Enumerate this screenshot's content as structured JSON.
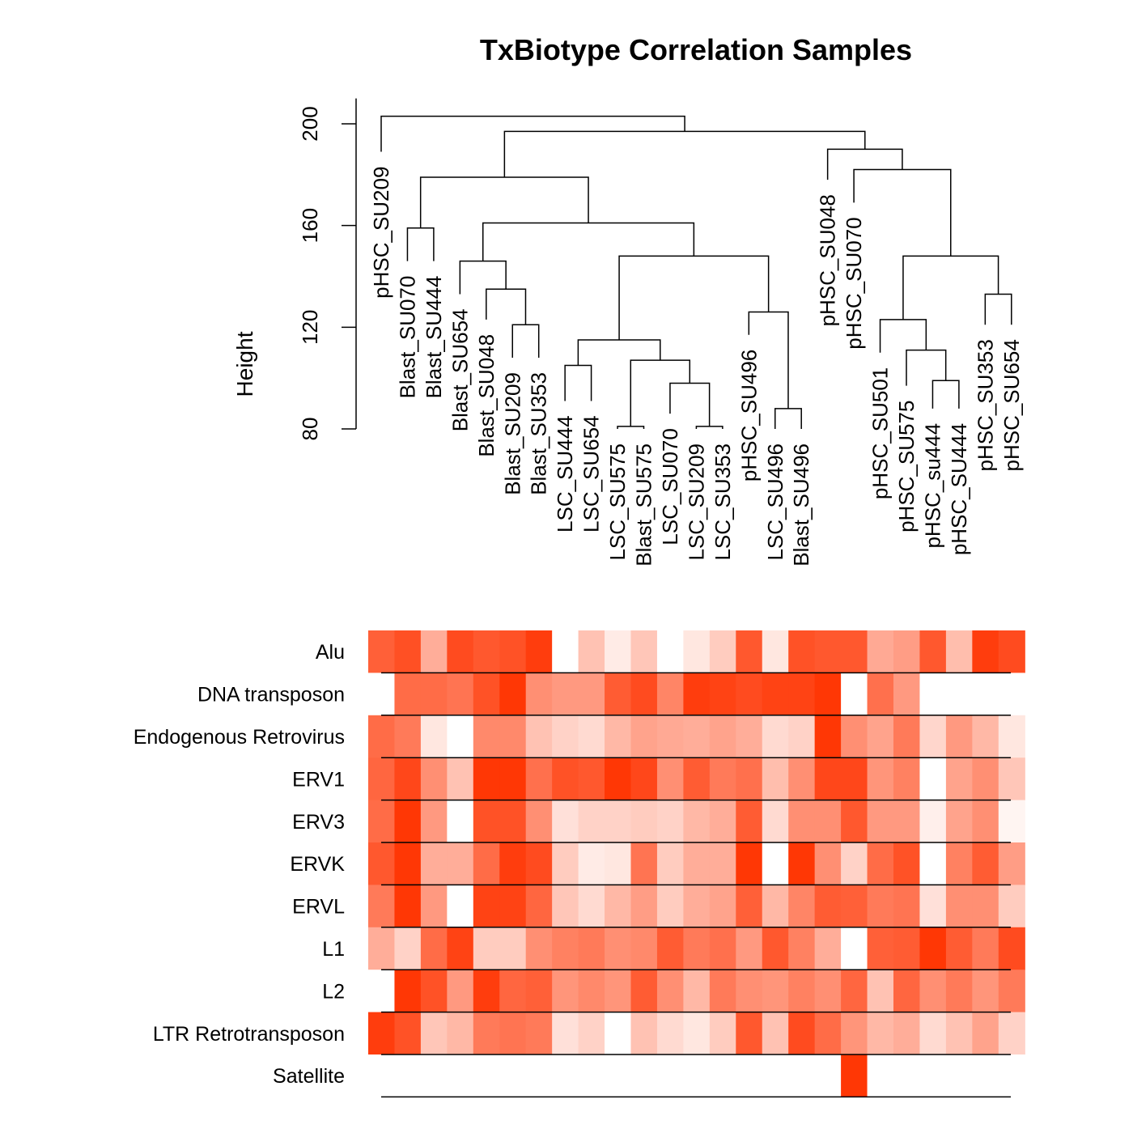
{
  "chart_data": {
    "type": "heatmap",
    "title": "TxBiotype Correlation Samples",
    "ylabel": "Height",
    "dendrogram": {
      "y_ticks": [
        80,
        120,
        160,
        200
      ],
      "ylim": [
        80,
        210
      ],
      "leaves": [
        {
          "label": "pHSC_SU209",
          "height": 189
        },
        {
          "label": "Blast_SU070",
          "height": 146
        },
        {
          "label": "Blast_SU444",
          "height": 146
        },
        {
          "label": "Blast_SU654",
          "height": 133
        },
        {
          "label": "Blast_SU048",
          "height": 123
        },
        {
          "label": "Blast_SU209",
          "height": 108
        },
        {
          "label": "Blast_SU353",
          "height": 108
        },
        {
          "label": "LSC_SU444",
          "height": 91
        },
        {
          "label": "LSC_SU654",
          "height": 91
        },
        {
          "label": "LSC_SU575",
          "height": 80
        },
        {
          "label": "Blast_SU575",
          "height": 80
        },
        {
          "label": "LSC_SU070",
          "height": 86
        },
        {
          "label": "LSC_SU209",
          "height": 80
        },
        {
          "label": "LSC_SU353",
          "height": 80
        },
        {
          "label": "pHSC_SU496",
          "height": 117
        },
        {
          "label": "LSC_SU496",
          "height": 80
        },
        {
          "label": "Blast_SU496",
          "height": 80
        },
        {
          "label": "pHSC_SU048",
          "height": 178
        },
        {
          "label": "pHSC_SU070",
          "height": 169
        },
        {
          "label": "pHSC_SU501",
          "height": 110
        },
        {
          "label": "pHSC_SU575",
          "height": 97
        },
        {
          "label": "pHSC_su444",
          "height": 88
        },
        {
          "label": "pHSC_SU444",
          "height": 88
        },
        {
          "label": "pHSC_SU353",
          "height": 121
        },
        {
          "label": "pHSC_SU654",
          "height": 121
        }
      ],
      "merges": [
        [
          -2,
          -3,
          159
        ],
        [
          -6,
          -7,
          121
        ],
        [
          -5,
          2,
          135
        ],
        [
          -4,
          3,
          146
        ],
        [
          -8,
          -9,
          105
        ],
        [
          -10,
          -11,
          81
        ],
        [
          -13,
          -14,
          81
        ],
        [
          -12,
          7,
          98
        ],
        [
          6,
          8,
          107
        ],
        [
          5,
          9,
          115
        ],
        [
          -16,
          -17,
          88
        ],
        [
          -15,
          11,
          126
        ],
        [
          10,
          12,
          148
        ],
        [
          4,
          13,
          161
        ],
        [
          1,
          14,
          179
        ],
        [
          -22,
          -23,
          99
        ],
        [
          -21,
          16,
          111
        ],
        [
          -20,
          17,
          123
        ],
        [
          -24,
          -25,
          133
        ],
        [
          18,
          19,
          148
        ],
        [
          -19,
          20,
          182
        ],
        [
          -18,
          21,
          190
        ],
        [
          15,
          22,
          197
        ],
        [
          -1,
          23,
          203
        ]
      ]
    },
    "rows": [
      "Alu",
      "DNA transposon",
      "Endogenous Retrovirus",
      "ERV1",
      "ERV3",
      "ERVK",
      "ERVL",
      "L1",
      "L2",
      "LTR Retrotransposon",
      "Satellite"
    ],
    "color_scale": {
      "low": "#ffffff",
      "high": "#ff3300"
    },
    "values": [
      [
        0.78,
        0.86,
        0.4,
        0.88,
        0.82,
        0.85,
        0.95,
        0.0,
        0.3,
        0.1,
        0.28,
        0.0,
        0.12,
        0.25,
        0.82,
        0.12,
        0.85,
        0.82,
        0.82,
        0.42,
        0.48,
        0.82,
        0.32,
        0.95,
        0.88
      ],
      [
        0.0,
        0.72,
        0.72,
        0.68,
        0.85,
        0.98,
        0.55,
        0.5,
        0.5,
        0.8,
        0.88,
        0.6,
        0.95,
        0.92,
        0.88,
        0.92,
        0.92,
        0.98,
        0.0,
        0.7,
        0.5,
        0.0,
        0.0,
        0.0,
        0.0
      ],
      [
        0.72,
        0.65,
        0.12,
        0.0,
        0.58,
        0.58,
        0.3,
        0.22,
        0.18,
        0.35,
        0.45,
        0.42,
        0.4,
        0.45,
        0.4,
        0.18,
        0.22,
        0.98,
        0.55,
        0.45,
        0.65,
        0.2,
        0.5,
        0.35,
        0.12
      ],
      [
        0.75,
        0.9,
        0.55,
        0.3,
        0.98,
        0.98,
        0.7,
        0.85,
        0.82,
        0.98,
        0.9,
        0.55,
        0.8,
        0.65,
        0.7,
        0.32,
        0.55,
        0.9,
        0.9,
        0.52,
        0.62,
        0.0,
        0.45,
        0.55,
        0.28
      ],
      [
        0.72,
        0.98,
        0.5,
        0.0,
        0.85,
        0.85,
        0.55,
        0.15,
        0.22,
        0.22,
        0.25,
        0.22,
        0.35,
        0.4,
        0.8,
        0.18,
        0.55,
        0.55,
        0.82,
        0.5,
        0.5,
        0.08,
        0.45,
        0.55,
        0.05
      ],
      [
        0.82,
        0.98,
        0.4,
        0.4,
        0.72,
        0.95,
        0.88,
        0.25,
        0.1,
        0.12,
        0.68,
        0.25,
        0.4,
        0.4,
        0.98,
        0.0,
        0.98,
        0.55,
        0.22,
        0.72,
        0.85,
        0.0,
        0.62,
        0.8,
        0.48
      ],
      [
        0.65,
        0.98,
        0.5,
        0.0,
        0.92,
        0.92,
        0.75,
        0.28,
        0.18,
        0.35,
        0.48,
        0.25,
        0.4,
        0.45,
        0.78,
        0.35,
        0.6,
        0.8,
        0.78,
        0.65,
        0.68,
        0.15,
        0.55,
        0.55,
        0.25
      ],
      [
        0.4,
        0.22,
        0.72,
        0.92,
        0.25,
        0.25,
        0.55,
        0.62,
        0.65,
        0.55,
        0.58,
        0.8,
        0.65,
        0.7,
        0.5,
        0.82,
        0.62,
        0.4,
        0.0,
        0.78,
        0.8,
        0.98,
        0.8,
        0.65,
        0.88
      ],
      [
        0.0,
        0.98,
        0.85,
        0.5,
        0.95,
        0.75,
        0.78,
        0.52,
        0.58,
        0.52,
        0.8,
        0.55,
        0.35,
        0.65,
        0.55,
        0.52,
        0.62,
        0.55,
        0.75,
        0.3,
        0.75,
        0.55,
        0.65,
        0.52,
        0.65
      ],
      [
        0.95,
        0.85,
        0.28,
        0.35,
        0.65,
        0.68,
        0.65,
        0.15,
        0.22,
        0.0,
        0.3,
        0.18,
        0.12,
        0.25,
        0.82,
        0.3,
        0.88,
        0.72,
        0.52,
        0.35,
        0.4,
        0.18,
        0.3,
        0.45,
        0.22
      ],
      [
        0.0,
        0.0,
        0.0,
        0.0,
        0.0,
        0.0,
        0.0,
        0.0,
        0.0,
        0.0,
        0.0,
        0.0,
        0.0,
        0.0,
        0.0,
        0.0,
        0.0,
        0.0,
        0.98,
        0.0,
        0.0,
        0.0,
        0.0,
        0.0,
        0.0
      ]
    ]
  }
}
